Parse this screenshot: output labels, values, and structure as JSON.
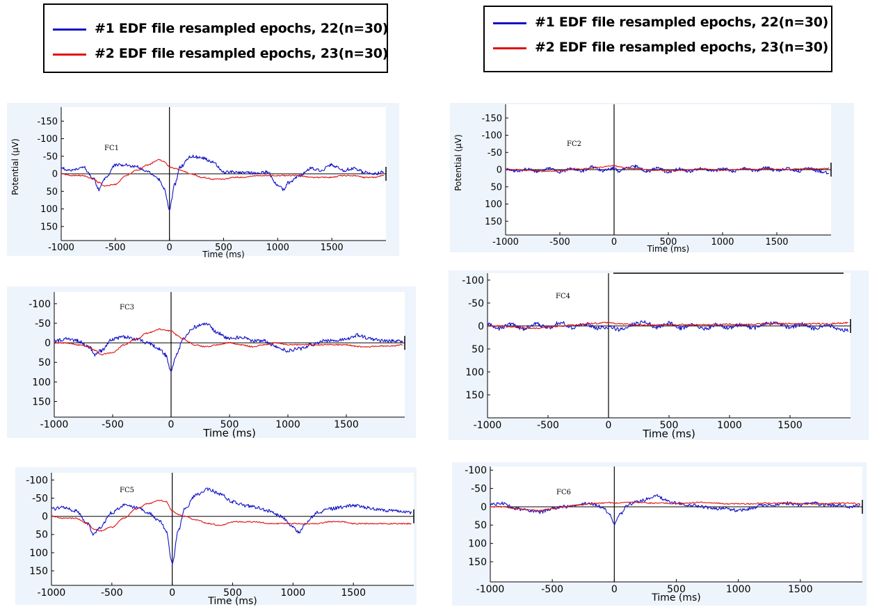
{
  "legends": [
    {
      "entries": [
        {
          "label": "#1 EDF file resampled epochs, 22(n=30)",
          "color": "#1010c8"
        },
        {
          "label": "#2 EDF file resampled epochs, 23(n=30)",
          "color": "#e01010"
        }
      ]
    },
    {
      "entries": [
        {
          "label": "#1 EDF file resampled epochs, 22(n=30)",
          "color": "#1010c8"
        },
        {
          "label": "#2 EDF file resampled epochs, 23(n=30)",
          "color": "#e01010"
        }
      ]
    }
  ],
  "chart_data": [
    {
      "type": "line",
      "channel": "FC1",
      "xlabel": "Time (ms)",
      "ylabel": "Potential (μV)",
      "xlim": [
        -1000,
        2000
      ],
      "ylim": [
        -190,
        190
      ],
      "y_inverted": true,
      "xticks": [
        -1000,
        -500,
        0,
        500,
        1000,
        1500
      ],
      "yticks": [
        -150,
        -100,
        -50,
        0,
        50,
        100,
        150
      ],
      "x": [
        -1000,
        -900,
        -800,
        -700,
        -650,
        -600,
        -500,
        -400,
        -300,
        -200,
        -100,
        -50,
        0,
        50,
        100,
        200,
        300,
        400,
        500,
        600,
        700,
        800,
        900,
        1000,
        1050,
        1100,
        1200,
        1300,
        1400,
        1500,
        1600,
        1700,
        1800,
        1900,
        1980
      ],
      "series": [
        {
          "name": "#1 EDF file resampled epochs, 22(n=30)",
          "color": "#1010c8",
          "values": [
            -15,
            -10,
            -20,
            15,
            45,
            15,
            -25,
            -25,
            -20,
            -5,
            15,
            40,
            100,
            30,
            -20,
            -50,
            -45,
            -35,
            -5,
            -5,
            -5,
            0,
            -5,
            30,
            45,
            25,
            5,
            -15,
            -10,
            -25,
            -10,
            -15,
            -5,
            0,
            -5
          ]
        },
        {
          "name": "#2 EDF file resampled epochs, 23(n=30)",
          "color": "#e01010",
          "values": [
            0,
            5,
            5,
            15,
            25,
            35,
            30,
            5,
            -10,
            -25,
            -40,
            -35,
            -20,
            -15,
            -10,
            0,
            10,
            15,
            15,
            10,
            10,
            5,
            5,
            5,
            5,
            5,
            5,
            10,
            10,
            10,
            5,
            5,
            10,
            10,
            5
          ]
        }
      ]
    },
    {
      "type": "line",
      "channel": "FC2",
      "xlabel": "Time (ms)",
      "ylabel": "Potential (μV)",
      "xlim": [
        -1000,
        2000
      ],
      "ylim": [
        -190,
        190
      ],
      "y_inverted": true,
      "xticks": [
        -1000,
        -500,
        0,
        500,
        1000,
        1500
      ],
      "yticks": [
        -150,
        -100,
        -50,
        0,
        50,
        100,
        150
      ],
      "x": [
        -1000,
        -900,
        -800,
        -700,
        -600,
        -500,
        -400,
        -300,
        -200,
        -100,
        0,
        50,
        100,
        200,
        300,
        400,
        500,
        600,
        700,
        800,
        900,
        1000,
        1100,
        1200,
        1300,
        1400,
        1500,
        1600,
        1700,
        1800,
        1900,
        1980
      ],
      "series": [
        {
          "name": "#1 EDF file resampled epochs, 22(n=30)",
          "color": "#1010c8",
          "values": [
            -2,
            5,
            -3,
            6,
            -4,
            8,
            -3,
            4,
            -8,
            3,
            -5,
            6,
            -3,
            -10,
            5,
            -4,
            8,
            -2,
            5,
            -4,
            6,
            -3,
            4,
            -5,
            3,
            -6,
            4,
            -3,
            5,
            -4,
            6,
            10
          ]
        },
        {
          "name": "#2 EDF file resampled epochs, 23(n=30)",
          "color": "#e01010",
          "values": [
            0,
            0,
            2,
            3,
            5,
            3,
            0,
            -2,
            -5,
            -8,
            -12,
            -8,
            -5,
            -3,
            0,
            2,
            3,
            2,
            0,
            -2,
            0,
            2,
            0,
            -2,
            0,
            -3,
            -2,
            0,
            -2,
            -3,
            -2,
            -4
          ]
        }
      ]
    },
    {
      "type": "line",
      "channel": "FC3",
      "xlabel": "Time (ms)",
      "ylabel": "",
      "xlim": [
        -1000,
        2000
      ],
      "ylim": [
        -130,
        190
      ],
      "y_inverted": true,
      "xticks": [
        -1000,
        -500,
        0,
        500,
        1000,
        1500
      ],
      "yticks": [
        -100,
        -50,
        0,
        50,
        100,
        150
      ],
      "x": [
        -1000,
        -900,
        -800,
        -700,
        -650,
        -600,
        -500,
        -400,
        -300,
        -200,
        -100,
        -50,
        0,
        50,
        100,
        200,
        300,
        400,
        500,
        600,
        700,
        800,
        900,
        1000,
        1100,
        1200,
        1300,
        1400,
        1500,
        1600,
        1700,
        1800,
        1900,
        1980
      ],
      "series": [
        {
          "name": "#1 EDF file resampled epochs, 22(n=30)",
          "color": "#1010c8",
          "values": [
            -5,
            -10,
            -5,
            10,
            30,
            20,
            -10,
            -15,
            -10,
            0,
            15,
            30,
            70,
            30,
            -10,
            -40,
            -50,
            -25,
            -10,
            -15,
            -5,
            -5,
            10,
            20,
            15,
            5,
            -5,
            -5,
            -10,
            -20,
            -10,
            -5,
            -5,
            -5
          ]
        },
        {
          "name": "#2 EDF file resampled epochs, 23(n=30)",
          "color": "#e01010",
          "values": [
            0,
            0,
            5,
            10,
            20,
            30,
            25,
            5,
            -10,
            -25,
            -35,
            -33,
            -30,
            -20,
            -10,
            5,
            10,
            5,
            0,
            5,
            10,
            5,
            0,
            5,
            5,
            5,
            5,
            5,
            5,
            10,
            10,
            8,
            8,
            5
          ]
        }
      ]
    },
    {
      "type": "line",
      "channel": "FC4",
      "xlabel": "Time (ms)",
      "ylabel": "",
      "xlim": [
        -1000,
        2000
      ],
      "ylim": [
        -115,
        200
      ],
      "y_inverted": true,
      "xticks": [
        -1000,
        -500,
        0,
        500,
        1000,
        1500
      ],
      "yticks": [
        -100,
        -50,
        0,
        50,
        100,
        150
      ],
      "x": [
        -1000,
        -900,
        -800,
        -700,
        -600,
        -500,
        -400,
        -300,
        -200,
        -100,
        0,
        100,
        200,
        300,
        400,
        500,
        600,
        700,
        800,
        900,
        1000,
        1100,
        1200,
        1300,
        1400,
        1500,
        1600,
        1700,
        1800,
        1900,
        1980
      ],
      "series": [
        {
          "name": "#1 EDF file resampled epochs, 22(n=30)",
          "color": "#1010c8",
          "values": [
            -3,
            5,
            -4,
            6,
            -5,
            4,
            -8,
            3,
            -5,
            4,
            2,
            8,
            -4,
            -8,
            3,
            -6,
            5,
            -3,
            6,
            -4,
            5,
            -3,
            4,
            -5,
            -6,
            3,
            -4,
            5,
            -3,
            6,
            10
          ]
        },
        {
          "name": "#2 EDF file resampled epochs, 23(n=30)",
          "color": "#e01010",
          "values": [
            0,
            0,
            2,
            4,
            5,
            3,
            0,
            -2,
            -4,
            -6,
            -8,
            -5,
            -3,
            -2,
            -2,
            -3,
            -3,
            -2,
            -3,
            -3,
            -4,
            -3,
            -4,
            -5,
            -5,
            -5,
            -4,
            -5,
            -5,
            -6,
            -7
          ]
        }
      ]
    },
    {
      "type": "line",
      "channel": "FC5",
      "xlabel": "Time (ms)",
      "ylabel": "",
      "xlim": [
        -1000,
        2000
      ],
      "ylim": [
        -120,
        190
      ],
      "y_inverted": true,
      "xticks": [
        -1000,
        -500,
        0,
        500,
        1000,
        1500
      ],
      "yticks": [
        -100,
        -50,
        0,
        50,
        100,
        150
      ],
      "x": [
        -1000,
        -900,
        -800,
        -700,
        -650,
        -600,
        -500,
        -400,
        -300,
        -200,
        -100,
        -50,
        0,
        50,
        100,
        200,
        300,
        400,
        500,
        600,
        700,
        800,
        900,
        1000,
        1050,
        1100,
        1200,
        1300,
        1400,
        1500,
        1600,
        1700,
        1800,
        1900,
        1980
      ],
      "series": [
        {
          "name": "#1 EDF file resampled epochs, 22(n=30)",
          "color": "#1010c8",
          "values": [
            -20,
            -25,
            -15,
            20,
            50,
            30,
            -10,
            -30,
            -25,
            -10,
            15,
            40,
            130,
            40,
            -20,
            -60,
            -75,
            -60,
            -40,
            -30,
            -25,
            -15,
            0,
            30,
            45,
            20,
            -10,
            -20,
            -25,
            -30,
            -25,
            -20,
            -15,
            -15,
            -10
          ]
        },
        {
          "name": "#2 EDF file resampled epochs, 23(n=30)",
          "color": "#e01010",
          "values": [
            0,
            5,
            5,
            20,
            35,
            40,
            30,
            5,
            -20,
            -35,
            -45,
            -40,
            -15,
            -5,
            0,
            10,
            20,
            25,
            15,
            15,
            15,
            20,
            20,
            20,
            20,
            20,
            20,
            15,
            15,
            20,
            20,
            20,
            20,
            20,
            20
          ]
        }
      ]
    },
    {
      "type": "line",
      "channel": "FC6",
      "xlabel": "Time (ms)",
      "ylabel": "",
      "xlim": [
        -1000,
        2000
      ],
      "ylim": [
        -110,
        205
      ],
      "y_inverted": true,
      "xticks": [
        -1000,
        -500,
        0,
        500,
        1000,
        1500
      ],
      "yticks": [
        -100,
        -50,
        0,
        50,
        100,
        150
      ],
      "x": [
        -1000,
        -900,
        -800,
        -700,
        -600,
        -500,
        -400,
        -300,
        -200,
        -100,
        -50,
        0,
        50,
        100,
        200,
        300,
        350,
        400,
        500,
        600,
        700,
        800,
        900,
        1000,
        1100,
        1200,
        1300,
        1400,
        1500,
        1600,
        1700,
        1800,
        1900,
        1980
      ],
      "series": [
        {
          "name": "#1 EDF file resampled epochs, 22(n=30)",
          "color": "#1010c8",
          "values": [
            -5,
            -10,
            5,
            10,
            15,
            5,
            0,
            -5,
            -10,
            0,
            15,
            45,
            20,
            -5,
            -15,
            -25,
            -30,
            -20,
            -10,
            -5,
            0,
            5,
            5,
            10,
            5,
            -5,
            -5,
            -10,
            -5,
            -10,
            -5,
            -5,
            0,
            -5
          ]
        },
        {
          "name": "#2 EDF file resampled epochs, 23(n=30)",
          "color": "#e01010",
          "values": [
            0,
            0,
            5,
            8,
            10,
            5,
            0,
            -5,
            -8,
            -10,
            -12,
            -10,
            -10,
            -12,
            -12,
            -10,
            -10,
            -10,
            -8,
            -10,
            -12,
            -10,
            -8,
            -8,
            -8,
            -10,
            -10,
            -10,
            -8,
            -8,
            -8,
            -10,
            -10,
            -8
          ]
        }
      ]
    }
  ]
}
